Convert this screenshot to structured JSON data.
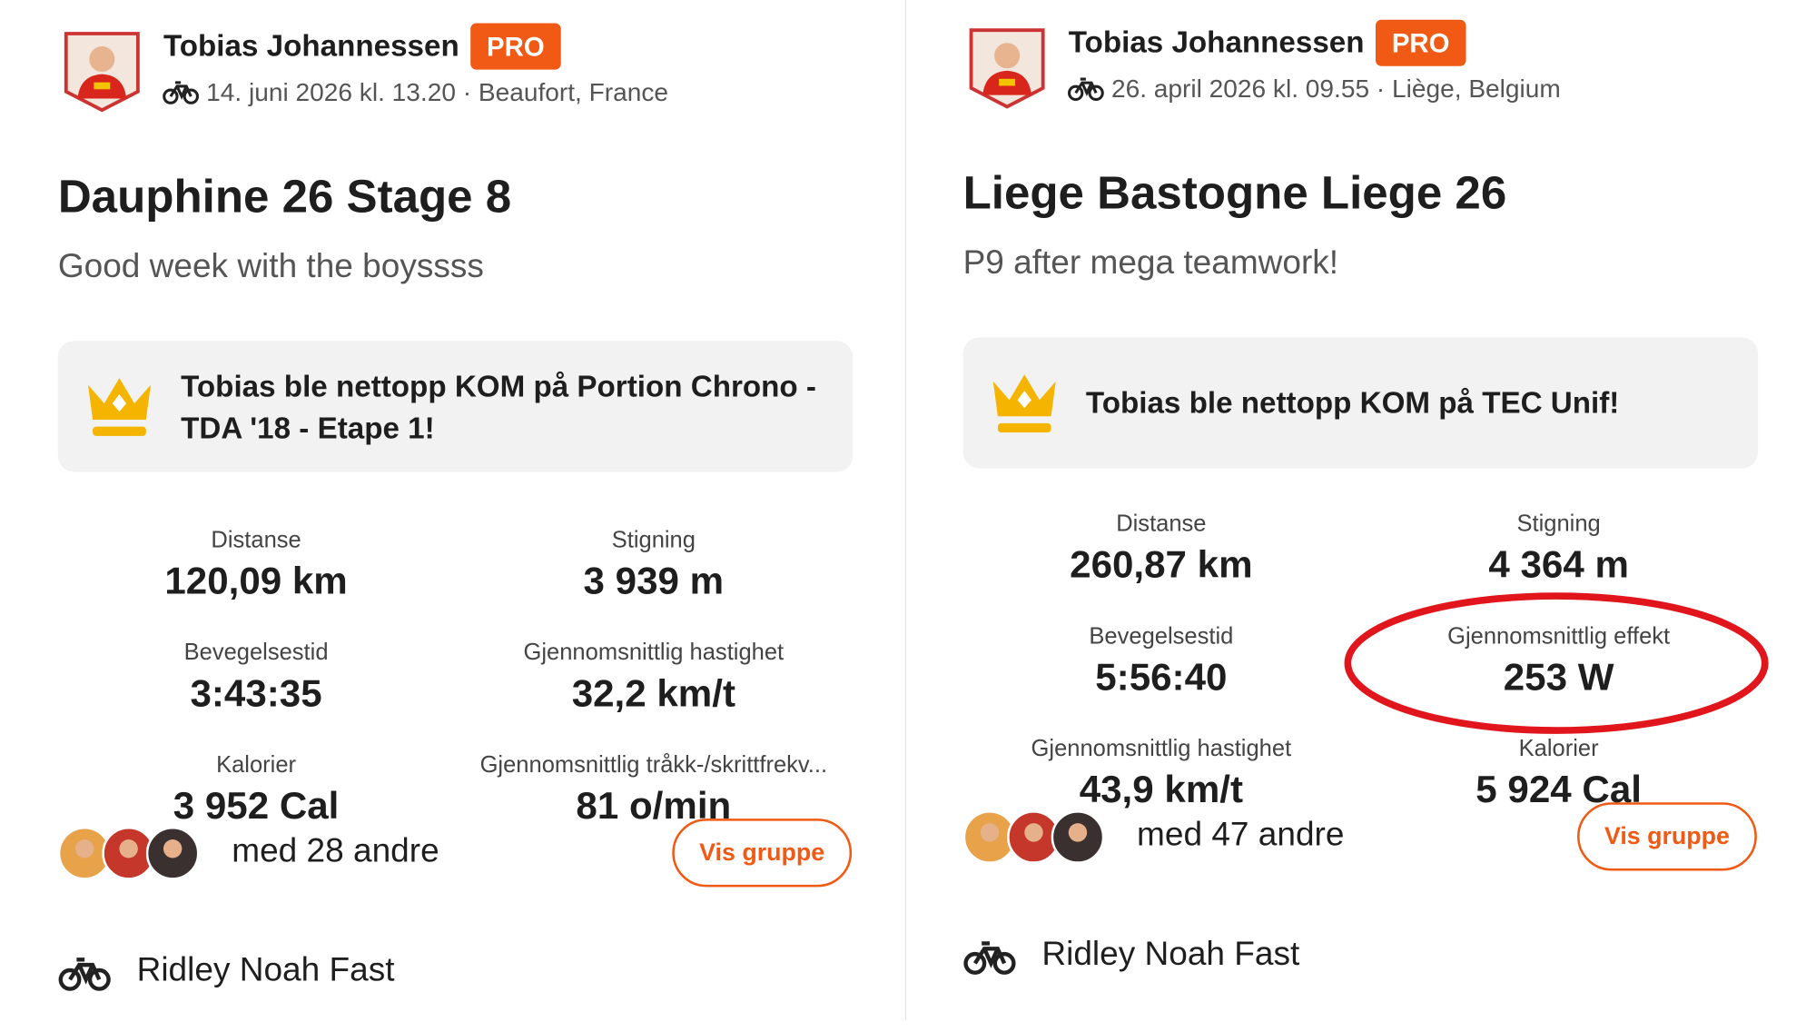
{
  "panels": [
    {
      "athlete": "Tobias Johannessen",
      "badge": "PRO",
      "meta": "14. juni 2026 kl. 13.20 · Beaufort, France",
      "title": "Dauphine 26 Stage 8",
      "description": "Good week with the boyssss",
      "kom": "Tobias ble nettopp KOM på Portion Chrono - TDA '18 - Etape 1!",
      "stats": [
        {
          "label": "Distanse",
          "value": "120,09 km"
        },
        {
          "label": "Stigning",
          "value": "3 939 m"
        },
        {
          "label": "Bevegelsestid",
          "value": "3:43:35"
        },
        {
          "label": "Gjennomsnittlig hastighet",
          "value": "32,2 km/t"
        },
        {
          "label": "Kalorier",
          "value": "3 952 Cal"
        },
        {
          "label": "Gjennomsnittlig tråkk-/skrittfrekv...",
          "value": "81 o/min"
        }
      ],
      "group": "med 28 andre",
      "button": "Vis gruppe",
      "bike": "Ridley Noah Fast"
    },
    {
      "athlete": "Tobias Johannessen",
      "badge": "PRO",
      "meta": "26. april 2026 kl. 09.55 · Liège, Belgium",
      "title": "Liege Bastogne Liege 26",
      "description": "P9 after mega teamwork!",
      "kom": "Tobias ble nettopp KOM på TEC Unif!",
      "stats": [
        {
          "label": "Distanse",
          "value": "260,87 km"
        },
        {
          "label": "Stigning",
          "value": "4 364 m"
        },
        {
          "label": "Bevegelsestid",
          "value": "5:56:40"
        },
        {
          "label": "Gjennomsnittlig effekt",
          "value": "253 W"
        },
        {
          "label": "Gjennomsnittlig hastighet",
          "value": "43,9 km/t"
        },
        {
          "label": "Kalorier",
          "value": "5 924 Cal"
        }
      ],
      "group": "med 47 andre",
      "button": "Vis gruppe",
      "bike": "Ridley Noah Fast"
    }
  ]
}
